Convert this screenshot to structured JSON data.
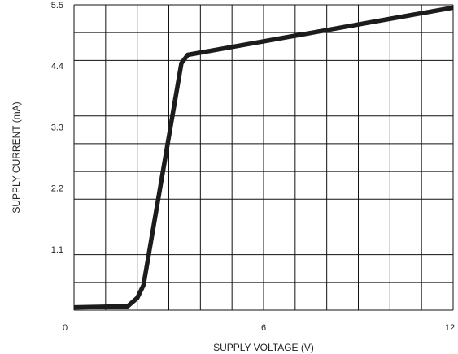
{
  "chart_data": {
    "type": "line",
    "title": "",
    "xlabel": "SUPPLY VOLTAGE (V)",
    "ylabel": "SUPPLY CURRENT (mA)",
    "xlim": [
      0,
      12
    ],
    "ylim": [
      0,
      5.5
    ],
    "xticks": [
      {
        "value": 0,
        "label": "0"
      },
      {
        "value": 6,
        "label": "6"
      },
      {
        "value": 12,
        "label": "12"
      }
    ],
    "yticks": [
      {
        "value": 1.1,
        "label": "1.1"
      },
      {
        "value": 2.2,
        "label": "2.2"
      },
      {
        "value": 3.3,
        "label": "3.3"
      },
      {
        "value": 4.4,
        "label": "4.4"
      },
      {
        "value": 5.5,
        "label": "5.5"
      }
    ],
    "grid": true,
    "grid_x_divisions": 12,
    "grid_y_divisions": 11,
    "line_color": "#1c1c1c",
    "grid_color": "#111111",
    "series": [
      {
        "x": [
          0,
          1.7,
          2.0,
          2.2,
          3.4,
          3.6,
          12
        ],
        "y": [
          0.05,
          0.07,
          0.22,
          0.45,
          4.45,
          4.6,
          5.45
        ]
      }
    ]
  }
}
